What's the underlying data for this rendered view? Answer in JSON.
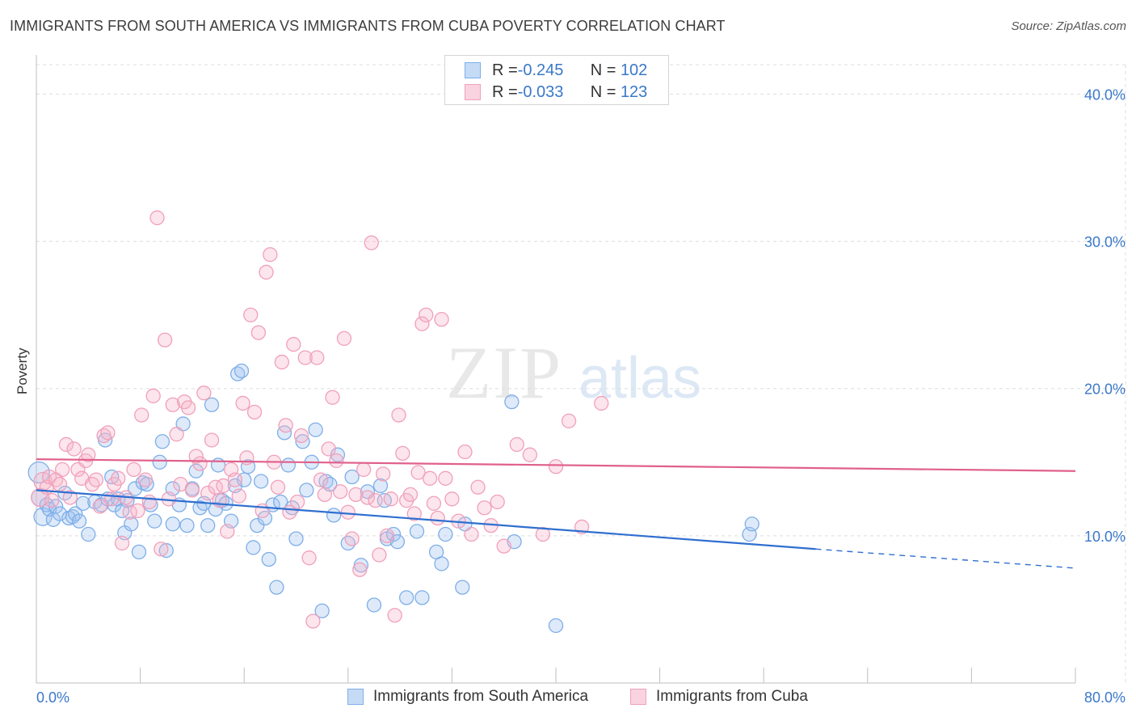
{
  "header": {
    "title": "IMMIGRANTS FROM SOUTH AMERICA VS IMMIGRANTS FROM CUBA POVERTY CORRELATION CHART",
    "source": "Source: ZipAtlas.com"
  },
  "watermark": {
    "zip": "ZIP",
    "atlas": "atlas"
  },
  "legend_top": [
    {
      "r_label": "R = ",
      "r_value": "-0.245",
      "n_label": "N = ",
      "n_value": "102",
      "color": "#7eaee8",
      "fill": "#c5dbf5"
    },
    {
      "r_label": "R = ",
      "r_value": "-0.033",
      "n_label": "N = ",
      "n_value": "123",
      "color": "#f0a0bb",
      "fill": "#f9d3df"
    }
  ],
  "colors": {
    "blue_stroke": "#7eaee8",
    "blue_fill": "rgba(160,196,240,0.35)",
    "blue_line": "#2f6fd0",
    "pink_stroke": "#f0a0bb",
    "pink_fill": "rgba(245,180,200,0.35)",
    "pink_line": "#e0608c",
    "grid": "#dddddd",
    "tick_text": "#3a78c9"
  },
  "chart_data": {
    "type": "scatter",
    "title": "IMMIGRANTS FROM SOUTH AMERICA VS IMMIGRANTS FROM CUBA POVERTY CORRELATION CHART",
    "xlabel": "",
    "ylabel": "Poverty",
    "xlim": [
      0,
      80
    ],
    "ylim": [
      0,
      42
    ],
    "x_tick_labels": [
      "0.0%",
      "80.0%"
    ],
    "y_ticks": [
      10,
      20,
      30,
      40
    ],
    "y_tick_labels": [
      "10.0%",
      "20.0%",
      "30.0%",
      "40.0%"
    ],
    "grid": true,
    "legend_position": "bottom",
    "series": [
      {
        "name": "Immigrants from South America",
        "trend": {
          "x0": 0,
          "y0": 13.1,
          "x1": 60,
          "y1": 9.1,
          "dash_x1": 80,
          "dash_y1": 7.8
        },
        "points": [
          [
            0.2,
            14.3
          ],
          [
            0.3,
            12.6
          ],
          [
            0.5,
            11.3
          ],
          [
            0.8,
            12.1
          ],
          [
            1.0,
            11.8
          ],
          [
            1.3,
            11.1
          ],
          [
            1.5,
            12.0
          ],
          [
            1.8,
            11.5
          ],
          [
            2.2,
            12.9
          ],
          [
            2.5,
            11.2
          ],
          [
            2.8,
            11.3
          ],
          [
            3.0,
            11.5
          ],
          [
            3.3,
            11.0
          ],
          [
            3.6,
            12.2
          ],
          [
            4.0,
            10.1
          ],
          [
            4.5,
            12.3
          ],
          [
            5.0,
            12.1
          ],
          [
            5.3,
            16.5
          ],
          [
            5.5,
            12.5
          ],
          [
            5.8,
            14.0
          ],
          [
            6.0,
            12.1
          ],
          [
            6.3,
            12.5
          ],
          [
            6.6,
            11.7
          ],
          [
            6.8,
            10.2
          ],
          [
            7.0,
            12.4
          ],
          [
            7.3,
            10.8
          ],
          [
            7.6,
            13.2
          ],
          [
            7.9,
            8.9
          ],
          [
            8.2,
            13.6
          ],
          [
            8.5,
            13.5
          ],
          [
            8.8,
            12.1
          ],
          [
            9.1,
            11.0
          ],
          [
            9.5,
            15.0
          ],
          [
            9.7,
            16.4
          ],
          [
            10.0,
            9.0
          ],
          [
            10.5,
            10.8
          ],
          [
            10.5,
            13.2
          ],
          [
            11.0,
            12.1
          ],
          [
            11.3,
            17.6
          ],
          [
            11.6,
            10.7
          ],
          [
            12.0,
            13.2
          ],
          [
            12.3,
            14.4
          ],
          [
            12.6,
            11.9
          ],
          [
            12.9,
            12.2
          ],
          [
            13.2,
            10.7
          ],
          [
            13.5,
            18.9
          ],
          [
            13.8,
            11.8
          ],
          [
            14.0,
            14.8
          ],
          [
            14.3,
            12.4
          ],
          [
            14.6,
            12.2
          ],
          [
            15.0,
            11.0
          ],
          [
            15.3,
            13.4
          ],
          [
            15.5,
            21.0
          ],
          [
            15.8,
            21.2
          ],
          [
            16.0,
            13.8
          ],
          [
            16.3,
            14.7
          ],
          [
            16.7,
            9.2
          ],
          [
            17.0,
            10.7
          ],
          [
            17.3,
            13.7
          ],
          [
            17.6,
            11.2
          ],
          [
            17.9,
            8.4
          ],
          [
            18.2,
            12.1
          ],
          [
            18.5,
            6.5
          ],
          [
            18.8,
            12.3
          ],
          [
            19.1,
            17.0
          ],
          [
            19.4,
            14.8
          ],
          [
            19.7,
            11.9
          ],
          [
            20.0,
            9.8
          ],
          [
            20.5,
            16.4
          ],
          [
            20.8,
            13.1
          ],
          [
            21.2,
            15.0
          ],
          [
            21.5,
            17.2
          ],
          [
            22.0,
            4.9
          ],
          [
            22.3,
            13.7
          ],
          [
            22.6,
            13.5
          ],
          [
            22.9,
            11.4
          ],
          [
            23.2,
            15.5
          ],
          [
            24.0,
            9.5
          ],
          [
            24.3,
            14.0
          ],
          [
            25.0,
            8.0
          ],
          [
            25.5,
            13.0
          ],
          [
            26.0,
            5.3
          ],
          [
            26.5,
            13.4
          ],
          [
            26.8,
            12.4
          ],
          [
            27.0,
            9.8
          ],
          [
            27.5,
            10.1
          ],
          [
            27.8,
            9.6
          ],
          [
            28.5,
            5.8
          ],
          [
            29.3,
            10.3
          ],
          [
            29.7,
            5.8
          ],
          [
            30.8,
            8.9
          ],
          [
            31.2,
            8.1
          ],
          [
            31.5,
            10.1
          ],
          [
            32.8,
            6.5
          ],
          [
            33.0,
            10.8
          ],
          [
            36.6,
            19.1
          ],
          [
            36.8,
            9.6
          ],
          [
            40.0,
            3.9
          ],
          [
            54.9,
            10.1
          ],
          [
            55.1,
            10.8
          ]
        ]
      },
      {
        "name": "Immigrants from Cuba",
        "trend": {
          "x0": 0,
          "y0": 15.2,
          "x1": 80,
          "y1": 14.4
        },
        "points": [
          [
            0.3,
            12.6
          ],
          [
            0.5,
            13.7
          ],
          [
            0.8,
            13.3
          ],
          [
            1.0,
            14.0
          ],
          [
            1.2,
            12.4
          ],
          [
            1.5,
            13.8
          ],
          [
            1.8,
            13.5
          ],
          [
            2.0,
            14.5
          ],
          [
            2.3,
            16.2
          ],
          [
            2.6,
            12.6
          ],
          [
            2.9,
            15.9
          ],
          [
            3.2,
            14.5
          ],
          [
            3.5,
            13.9
          ],
          [
            3.8,
            15.1
          ],
          [
            4.0,
            15.5
          ],
          [
            4.3,
            13.5
          ],
          [
            4.6,
            13.8
          ],
          [
            4.9,
            12.0
          ],
          [
            5.2,
            16.8
          ],
          [
            5.5,
            17.0
          ],
          [
            5.8,
            12.5
          ],
          [
            6.0,
            13.5
          ],
          [
            6.3,
            13.9
          ],
          [
            6.6,
            9.5
          ],
          [
            6.9,
            12.6
          ],
          [
            7.2,
            11.6
          ],
          [
            7.5,
            14.5
          ],
          [
            7.8,
            11.7
          ],
          [
            8.1,
            18.2
          ],
          [
            8.4,
            13.8
          ],
          [
            8.7,
            12.3
          ],
          [
            9.0,
            19.5
          ],
          [
            9.3,
            31.6
          ],
          [
            9.6,
            9.1
          ],
          [
            9.9,
            23.3
          ],
          [
            10.2,
            12.5
          ],
          [
            10.5,
            18.9
          ],
          [
            10.8,
            16.9
          ],
          [
            11.1,
            13.5
          ],
          [
            11.4,
            19.1
          ],
          [
            11.7,
            18.7
          ],
          [
            12.0,
            13.1
          ],
          [
            12.3,
            15.4
          ],
          [
            12.6,
            14.9
          ],
          [
            12.9,
            19.7
          ],
          [
            13.2,
            12.9
          ],
          [
            13.5,
            16.5
          ],
          [
            13.8,
            13.3
          ],
          [
            14.1,
            12.4
          ],
          [
            14.4,
            13.4
          ],
          [
            14.7,
            10.3
          ],
          [
            15.0,
            14.5
          ],
          [
            15.3,
            13.8
          ],
          [
            15.6,
            12.7
          ],
          [
            15.9,
            19.0
          ],
          [
            16.2,
            15.3
          ],
          [
            16.5,
            25.0
          ],
          [
            16.8,
            18.4
          ],
          [
            17.1,
            23.8
          ],
          [
            17.4,
            11.7
          ],
          [
            17.7,
            27.9
          ],
          [
            18.0,
            29.1
          ],
          [
            18.3,
            15.0
          ],
          [
            18.6,
            13.3
          ],
          [
            18.9,
            21.8
          ],
          [
            19.2,
            17.5
          ],
          [
            19.5,
            11.6
          ],
          [
            19.8,
            23.0
          ],
          [
            20.1,
            12.3
          ],
          [
            20.4,
            16.8
          ],
          [
            20.7,
            22.1
          ],
          [
            21.0,
            8.5
          ],
          [
            21.3,
            4.2
          ],
          [
            21.6,
            22.1
          ],
          [
            21.9,
            13.8
          ],
          [
            22.2,
            12.8
          ],
          [
            22.5,
            15.9
          ],
          [
            22.8,
            19.4
          ],
          [
            23.1,
            15.1
          ],
          [
            23.4,
            13.0
          ],
          [
            23.7,
            23.4
          ],
          [
            24.0,
            11.6
          ],
          [
            24.3,
            9.8
          ],
          [
            24.6,
            12.8
          ],
          [
            24.9,
            7.7
          ],
          [
            25.2,
            14.5
          ],
          [
            25.5,
            12.6
          ],
          [
            25.8,
            29.9
          ],
          [
            26.1,
            12.4
          ],
          [
            26.4,
            8.7
          ],
          [
            26.7,
            14.2
          ],
          [
            27.0,
            10.0
          ],
          [
            27.3,
            12.5
          ],
          [
            27.6,
            4.6
          ],
          [
            27.9,
            18.2
          ],
          [
            28.2,
            15.6
          ],
          [
            28.5,
            12.4
          ],
          [
            28.8,
            12.8
          ],
          [
            29.1,
            11.5
          ],
          [
            29.4,
            14.3
          ],
          [
            29.7,
            24.4
          ],
          [
            30.0,
            25.0
          ],
          [
            30.3,
            13.9
          ],
          [
            30.6,
            12.2
          ],
          [
            30.9,
            11.2
          ],
          [
            31.2,
            24.7
          ],
          [
            31.5,
            13.9
          ],
          [
            32.0,
            12.5
          ],
          [
            32.5,
            11.0
          ],
          [
            33.0,
            15.7
          ],
          [
            33.5,
            10.1
          ],
          [
            34.0,
            13.3
          ],
          [
            34.5,
            11.9
          ],
          [
            35.0,
            10.7
          ],
          [
            35.5,
            12.3
          ],
          [
            36.0,
            9.3
          ],
          [
            37.0,
            16.2
          ],
          [
            38.0,
            15.5
          ],
          [
            39.0,
            10.1
          ],
          [
            40.0,
            14.7
          ],
          [
            41.0,
            17.8
          ],
          [
            42.0,
            10.6
          ],
          [
            43.5,
            19.0
          ]
        ]
      }
    ]
  },
  "bottom_legend": [
    {
      "label": "Immigrants from South America"
    },
    {
      "label": "Immigrants from Cuba"
    }
  ],
  "axis": {
    "y_title": "Poverty",
    "x_min_label": "0.0%",
    "x_max_label": "80.0%"
  }
}
